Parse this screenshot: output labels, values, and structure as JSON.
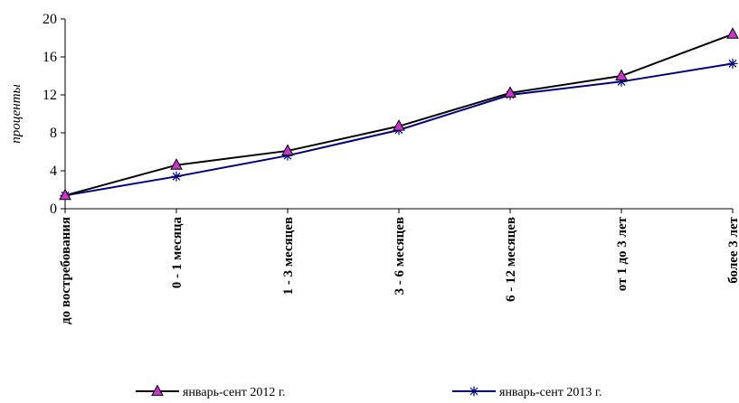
{
  "chart_data": {
    "type": "line",
    "title": "",
    "xlabel": "",
    "ylabel": "проценты",
    "ylim": [
      0,
      20
    ],
    "yticks": [
      0,
      4,
      8,
      12,
      16,
      20
    ],
    "grid": false,
    "legend_position": "bottom",
    "categories": [
      "до востребования",
      "0 - 1 месяца",
      "1 - 3 месяцев",
      "3 - 6 месяцев",
      "6 - 12 месяцев",
      "от 1 до 3 лет",
      "более 3 лет"
    ],
    "series": [
      {
        "name": "январь-сент 2012 г.",
        "values": [
          1.4,
          4.6,
          6.1,
          8.7,
          12.2,
          14.0,
          18.4
        ],
        "line_color": "#000000",
        "marker": "triangle",
        "marker_fill": "#cc33cc",
        "marker_stroke": "#000000"
      },
      {
        "name": "январь-сент 2013 г.",
        "values": [
          1.4,
          3.4,
          5.6,
          8.3,
          12.0,
          13.4,
          15.3
        ],
        "line_color": "#000080",
        "marker": "asterisk",
        "marker_fill": "none",
        "marker_stroke": "#000080"
      }
    ]
  }
}
